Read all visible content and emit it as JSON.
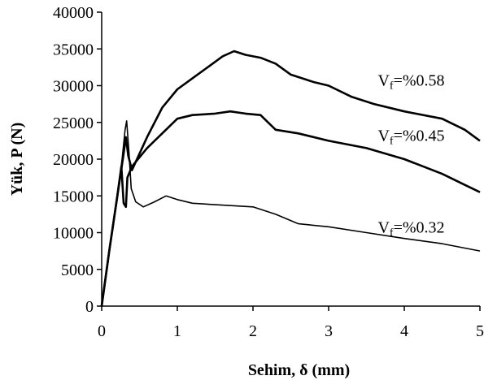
{
  "chart_data": {
    "type": "line",
    "xlabel": "Sehim, δ (mm)",
    "ylabel": "Yük, P (N)",
    "xlim": [
      0,
      5
    ],
    "ylim": [
      0,
      40000
    ],
    "x_ticks": [
      "0",
      "1",
      "2",
      "3",
      "4",
      "5"
    ],
    "y_ticks": [
      "0",
      "5000",
      "10000",
      "15000",
      "20000",
      "25000",
      "30000",
      "35000",
      "40000"
    ],
    "grid": false,
    "legend": "none",
    "series": [
      {
        "name": "Vf=%0.58",
        "label_main": "V",
        "label_sub": "f",
        "label_rest": "=%0.58",
        "points": [
          [
            0,
            0
          ],
          [
            0.1,
            7500
          ],
          [
            0.2,
            14500
          ],
          [
            0.28,
            20000
          ],
          [
            0.32,
            23000
          ],
          [
            0.35,
            20500
          ],
          [
            0.4,
            18500
          ],
          [
            0.6,
            23000
          ],
          [
            0.8,
            27000
          ],
          [
            1.0,
            29500
          ],
          [
            1.2,
            31000
          ],
          [
            1.4,
            32500
          ],
          [
            1.6,
            34000
          ],
          [
            1.75,
            34700
          ],
          [
            1.9,
            34200
          ],
          [
            2.1,
            33800
          ],
          [
            2.3,
            33000
          ],
          [
            2.5,
            31500
          ],
          [
            2.8,
            30500
          ],
          [
            3.0,
            30000
          ],
          [
            3.3,
            28500
          ],
          [
            3.6,
            27500
          ],
          [
            4.0,
            26500
          ],
          [
            4.5,
            25500
          ],
          [
            4.8,
            24000
          ],
          [
            5.0,
            22500
          ]
        ]
      },
      {
        "name": "Vf=%0.45",
        "label_main": "V",
        "label_sub": "f",
        "label_rest": "=%0.45",
        "points": [
          [
            0,
            0
          ],
          [
            0.1,
            7500
          ],
          [
            0.2,
            14500
          ],
          [
            0.26,
            19000
          ],
          [
            0.29,
            14000
          ],
          [
            0.32,
            13500
          ],
          [
            0.34,
            17500
          ],
          [
            0.4,
            19000
          ],
          [
            0.6,
            21500
          ],
          [
            0.8,
            23500
          ],
          [
            1.0,
            25500
          ],
          [
            1.2,
            26000
          ],
          [
            1.5,
            26200
          ],
          [
            1.7,
            26500
          ],
          [
            1.9,
            26200
          ],
          [
            2.1,
            26000
          ],
          [
            2.2,
            25000
          ],
          [
            2.3,
            24000
          ],
          [
            2.6,
            23500
          ],
          [
            3.0,
            22500
          ],
          [
            3.5,
            21500
          ],
          [
            4.0,
            20000
          ],
          [
            4.5,
            18000
          ],
          [
            4.8,
            16500
          ],
          [
            5.0,
            15500
          ]
        ]
      },
      {
        "name": "Vf=%0.32",
        "label_main": "V",
        "label_sub": "f",
        "label_rest": "=%0.32",
        "points": [
          [
            0,
            0
          ],
          [
            0.1,
            7500
          ],
          [
            0.2,
            14500
          ],
          [
            0.27,
            20000
          ],
          [
            0.31,
            24000
          ],
          [
            0.33,
            25200
          ],
          [
            0.36,
            21000
          ],
          [
            0.39,
            16000
          ],
          [
            0.45,
            14200
          ],
          [
            0.55,
            13500
          ],
          [
            0.7,
            14200
          ],
          [
            0.85,
            15000
          ],
          [
            1.0,
            14500
          ],
          [
            1.2,
            14000
          ],
          [
            1.5,
            13800
          ],
          [
            2.0,
            13500
          ],
          [
            2.3,
            12500
          ],
          [
            2.6,
            11200
          ],
          [
            3.0,
            10800
          ],
          [
            3.5,
            10000
          ],
          [
            4.0,
            9200
          ],
          [
            4.5,
            8500
          ],
          [
            5.0,
            7500
          ]
        ]
      }
    ],
    "annotations": [
      {
        "series": 0,
        "at": [
          3.65,
          30000
        ]
      },
      {
        "series": 1,
        "at": [
          3.65,
          22500
        ]
      },
      {
        "series": 2,
        "at": [
          3.65,
          10000
        ]
      }
    ]
  }
}
